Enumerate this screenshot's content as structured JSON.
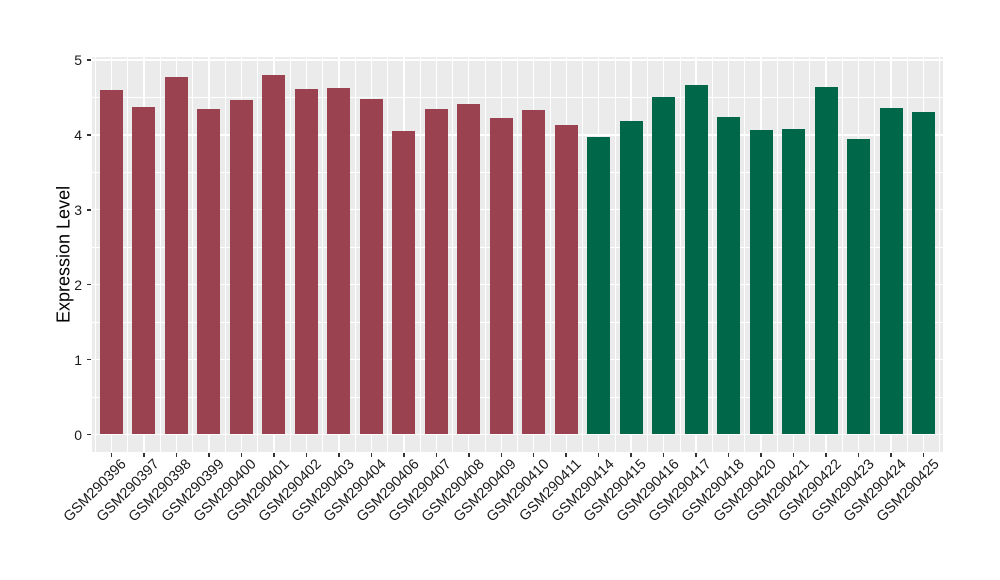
{
  "chart_data": {
    "type": "bar",
    "title": "",
    "xlabel": "",
    "ylabel": "Expression Level",
    "ylim": [
      0,
      5
    ],
    "yticks": [
      0,
      1,
      2,
      3,
      4,
      5
    ],
    "grid": "major and minor gridlines on, white on grey panel",
    "legend": "none",
    "categories": [
      "GSM290396",
      "GSM290397",
      "GSM290398",
      "GSM290399",
      "GSM290400",
      "GSM290401",
      "GSM290402",
      "GSM290403",
      "GSM290404",
      "GSM290406",
      "GSM290407",
      "GSM290408",
      "GSM290409",
      "GSM290410",
      "GSM290411",
      "GSM290414",
      "GSM290415",
      "GSM290416",
      "GSM290417",
      "GSM290418",
      "GSM290420",
      "GSM290421",
      "GSM290422",
      "GSM290423",
      "GSM290424",
      "GSM290425"
    ],
    "values": [
      4.6,
      4.37,
      4.77,
      4.35,
      4.47,
      4.8,
      4.61,
      4.63,
      4.48,
      4.05,
      4.35,
      4.41,
      4.22,
      4.33,
      4.13,
      3.97,
      4.18,
      4.5,
      4.66,
      4.24,
      4.06,
      4.08,
      4.64,
      3.94,
      4.36,
      4.31
    ],
    "groups": [
      "group1",
      "group1",
      "group1",
      "group1",
      "group1",
      "group1",
      "group1",
      "group1",
      "group1",
      "group1",
      "group1",
      "group1",
      "group1",
      "group1",
      "group1",
      "group2",
      "group2",
      "group2",
      "group2",
      "group2",
      "group2",
      "group2",
      "group2",
      "group2",
      "group2",
      "group2"
    ],
    "group_colors": {
      "group1": "#9A424F",
      "group2": "#006848"
    },
    "style": {
      "panel_background": "#EBEBEB",
      "gridline_color": "#FFFFFF",
      "tick_mark_color": "#333333",
      "tick_label_color": "#1A1A1A",
      "axis_title_color": "#000000"
    }
  }
}
